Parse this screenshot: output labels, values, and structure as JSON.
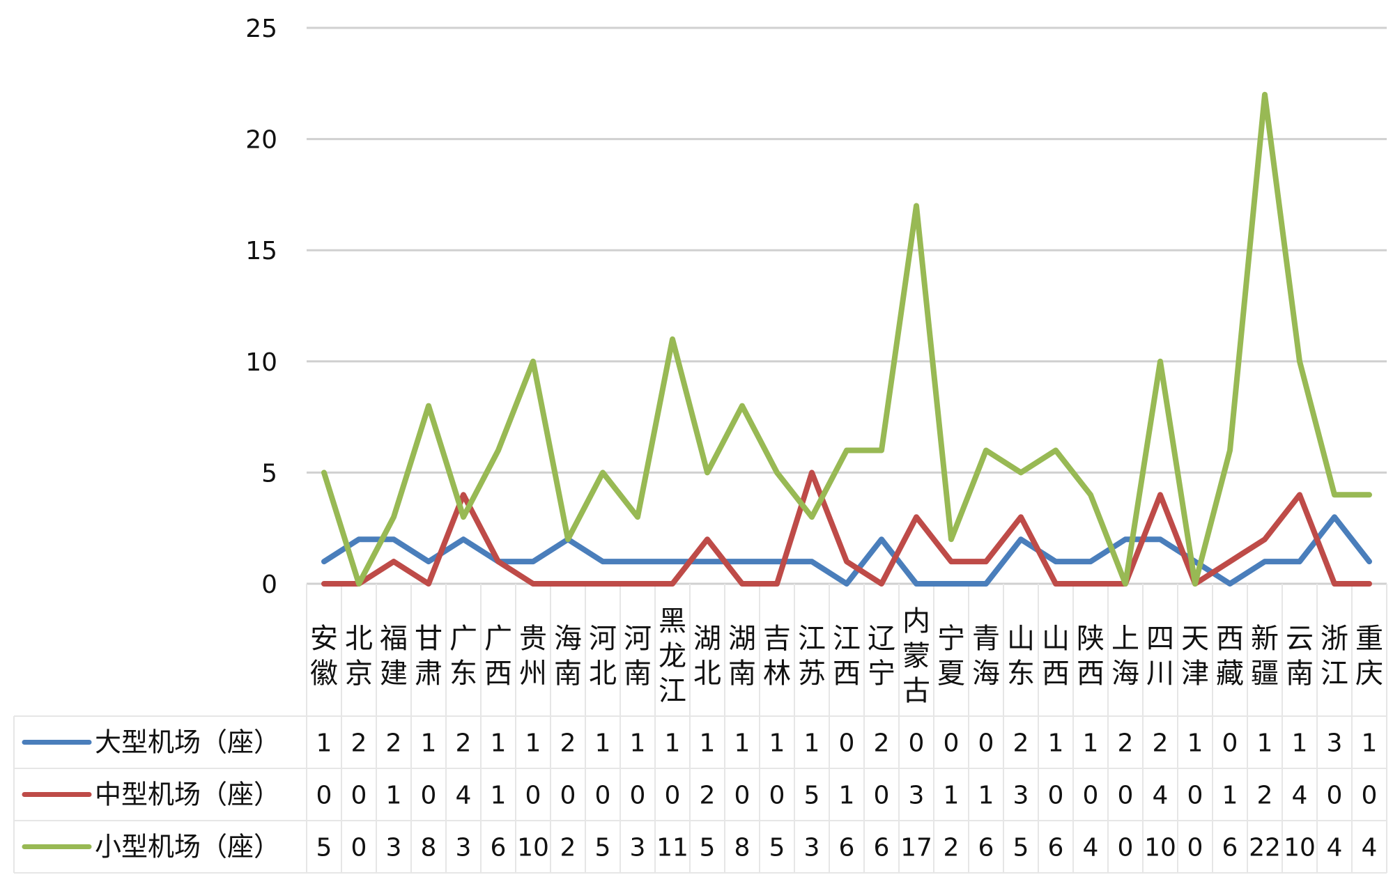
{
  "chart_data": {
    "type": "line",
    "title": "",
    "xlabel": "",
    "ylabel": "",
    "ylim": [
      0,
      25
    ],
    "yticks": [
      0,
      5,
      10,
      15,
      20,
      25
    ],
    "grid": true,
    "legend_placement": "data table rows below chart",
    "categories": [
      "安徽",
      "北京",
      "福建",
      "甘肃",
      "广东",
      "广西",
      "贵州",
      "海南",
      "河北",
      "河南",
      "黑龙江",
      "湖北",
      "湖南",
      "吉林",
      "江苏",
      "江西",
      "辽宁",
      "内蒙古",
      "宁夏",
      "青海",
      "山东",
      "山西",
      "陕西",
      "上海",
      "四川",
      "天津",
      "西藏",
      "新疆",
      "云南",
      "浙江",
      "重庆"
    ],
    "series": [
      {
        "name": "大型机场（座）",
        "color": "#4a7ebb",
        "values": [
          1,
          2,
          2,
          1,
          2,
          1,
          1,
          2,
          1,
          1,
          1,
          1,
          1,
          1,
          1,
          0,
          2,
          0,
          0,
          0,
          2,
          1,
          1,
          2,
          2,
          1,
          0,
          1,
          1,
          3,
          1
        ]
      },
      {
        "name": "中型机场（座）",
        "color": "#be4b48",
        "values": [
          0,
          0,
          1,
          0,
          4,
          1,
          0,
          0,
          0,
          0,
          0,
          2,
          0,
          0,
          5,
          1,
          0,
          3,
          1,
          1,
          3,
          0,
          0,
          0,
          4,
          0,
          1,
          2,
          4,
          0,
          0
        ]
      },
      {
        "name": "小型机场（座）",
        "color": "#98b954",
        "values": [
          5,
          0,
          3,
          8,
          3,
          6,
          10,
          2,
          5,
          3,
          11,
          5,
          8,
          5,
          3,
          6,
          6,
          17,
          2,
          6,
          5,
          6,
          4,
          0,
          10,
          0,
          6,
          22,
          10,
          4,
          4
        ]
      }
    ]
  }
}
